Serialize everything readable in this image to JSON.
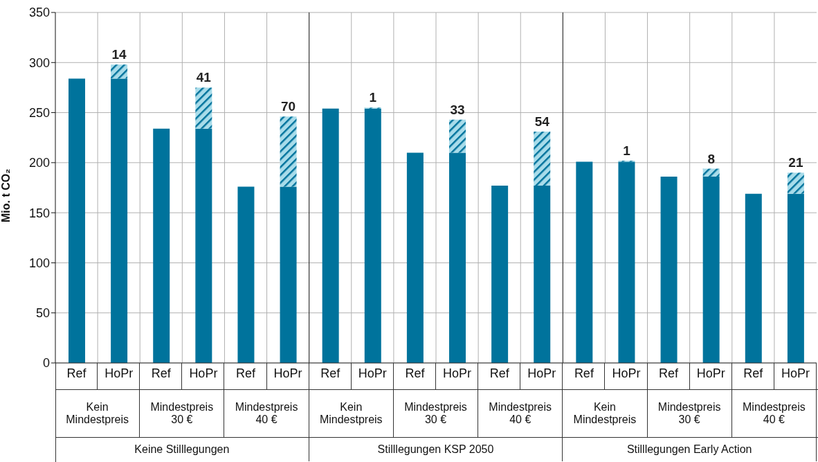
{
  "chart_data": {
    "type": "bar",
    "stacked": true,
    "ylabel": "Mio. t CO₂",
    "ylim": [
      0,
      350
    ],
    "yticks": [
      0,
      50,
      100,
      150,
      200,
      250,
      300,
      350
    ],
    "grid": true,
    "categories": [
      "Ref",
      "HoPr",
      "Ref",
      "HoPr",
      "Ref",
      "HoPr",
      "Ref",
      "HoPr",
      "Ref",
      "HoPr",
      "Ref",
      "HoPr",
      "Ref",
      "HoPr",
      "Ref",
      "HoPr",
      "Ref",
      "HoPr"
    ],
    "series": [
      {
        "color": "#00739c",
        "values": [
          284,
          284,
          234,
          234,
          176,
          176,
          254,
          254,
          210,
          210,
          177,
          177,
          201,
          201,
          186,
          186,
          169,
          169
        ]
      },
      {
        "color": "#a8dcea",
        "values": [
          null,
          14,
          null,
          41,
          null,
          70,
          null,
          1,
          null,
          33,
          null,
          54,
          null,
          1,
          null,
          8,
          null,
          21
        ],
        "value_labels": [
          null,
          "14",
          null,
          "41",
          null,
          "70",
          null,
          "1",
          null,
          "33",
          null,
          "54",
          null,
          "1",
          null,
          "8",
          null,
          "21"
        ]
      }
    ],
    "annotations": [
      "Kein Mindestpreis",
      "Mindestpreis 30 €",
      "Mindestpreis 40 €",
      "Kein Mindestpreis",
      "Mindestpreis 30 €",
      "Mindestpreis 40 €",
      "Kein Mindestpreis",
      "Mindestpreis 30 €",
      "Mindestpreis 40 €",
      "Keine Stilllegungen",
      "Stilllegungen KSP 2050",
      "Stilllegungen Early Action"
    ]
  }
}
